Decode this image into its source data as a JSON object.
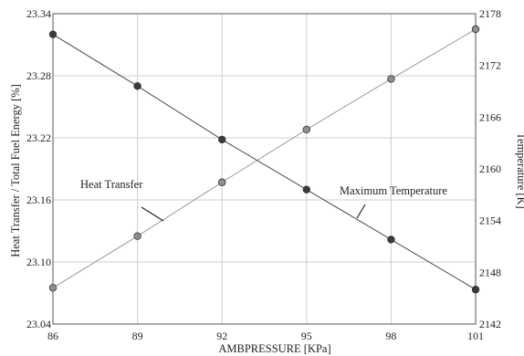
{
  "chart_data": {
    "type": "line",
    "title": "",
    "xlabel": "AMBPRESSURE [KPa]",
    "ylabel_left": "Heat Transfer / Total Fuel Energy [%]",
    "ylabel_right": "Temperature [K]",
    "x_ticks": [
      "86",
      "89",
      "92",
      "95",
      "98",
      "101"
    ],
    "x_range": [
      86,
      101
    ],
    "y_left_ticks": [
      "23.04",
      "23.10",
      "23.16",
      "23.22",
      "23.28",
      "23.34"
    ],
    "y_left_range": [
      23.04,
      23.34
    ],
    "y_right_ticks": [
      "2142",
      "2148",
      "2154",
      "2160",
      "2166",
      "2172",
      "2178"
    ],
    "y_right_range": [
      2142,
      2178
    ],
    "grid": true,
    "series": [
      {
        "name": "Heat Transfer",
        "axis": "left",
        "color": "#8f8f8f",
        "x": [
          86,
          89,
          92,
          95,
          98,
          101
        ],
        "y": [
          23.075,
          23.125,
          23.177,
          23.228,
          23.277,
          23.325
        ]
      },
      {
        "name": "Maximum Temperature",
        "axis": "right",
        "color": "#3a3a3a",
        "x": [
          86,
          89,
          92,
          95,
          98,
          101
        ],
        "y": [
          2175.6,
          2169.6,
          2163.4,
          2157.6,
          2151.8,
          2146.0
        ]
      }
    ],
    "annotations": [
      {
        "text": "Heat Transfer",
        "series": "Heat Transfer"
      },
      {
        "text": "Maximum Temperature",
        "series": "Maximum Temperature"
      }
    ]
  }
}
